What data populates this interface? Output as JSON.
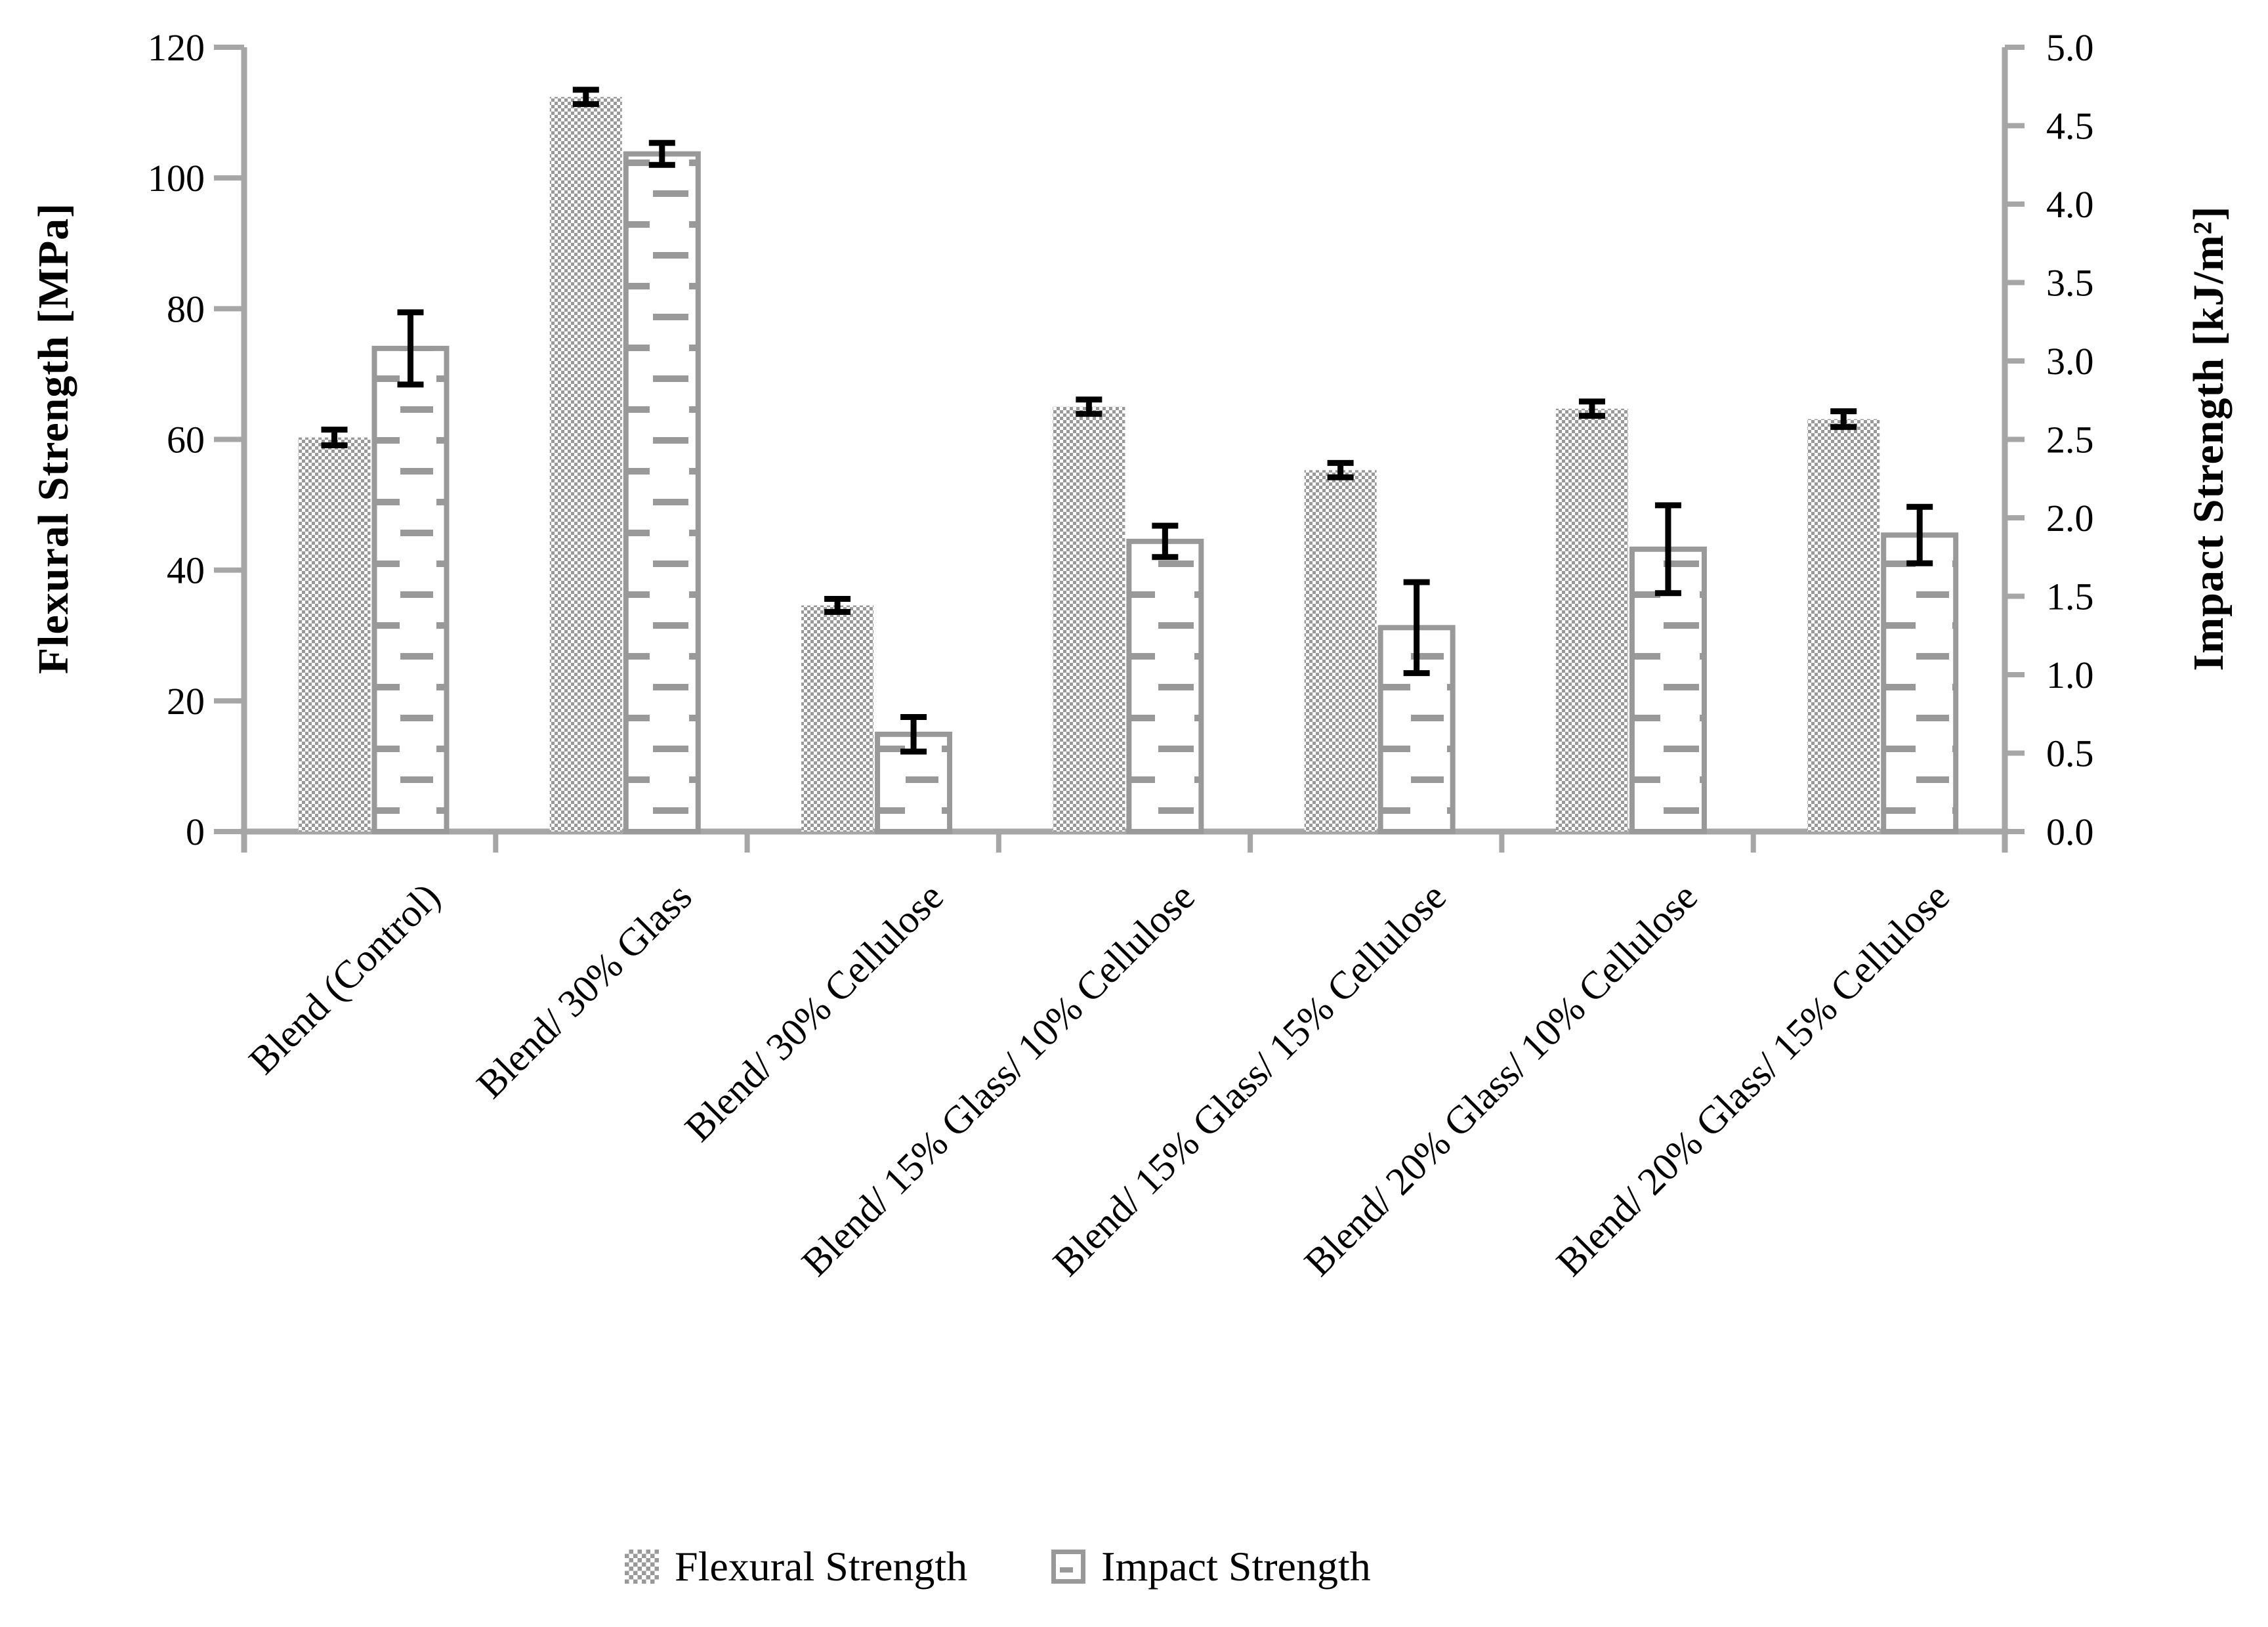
{
  "figure": {
    "left_axis": {
      "title": "Flexural Strength [MPa]",
      "min": 0,
      "max": 120,
      "step": 20,
      "tick_labels": [
        "0",
        "20",
        "40",
        "60",
        "80",
        "100",
        "120"
      ]
    },
    "right_axis": {
      "title": "Impact Strength [kJ/m²]",
      "min": 0,
      "max": 5,
      "step": 0.5,
      "tick_labels": [
        "0.0",
        "0.5",
        "1.0",
        "1.5",
        "2.0",
        "2.5",
        "3.0",
        "3.5",
        "4.0",
        "4.5",
        "5.0"
      ]
    },
    "legend": {
      "flexural_label": "Flexural Strength",
      "impact_label": "Impact Strength"
    },
    "colors": {
      "pattern_gray": "#999999",
      "axis_gray": "#A6A6A6",
      "error_bar": "#000000",
      "background": "#ffffff"
    }
  },
  "chart_data": {
    "type": "bar",
    "title": "",
    "categories": [
      "Blend (Control)",
      "Blend/ 30% Glass",
      "Blend/ 30% Cellulose",
      "Blend/ 15% Glass/ 10% Cellulose",
      "Blend/ 15% Glass/ 15% Cellulose",
      "Blend/ 20% Glass/ 10% Cellulose",
      "Blend/ 20% Glass/ 15% Cellulose"
    ],
    "series": [
      {
        "name": "Flexural Strength",
        "axis": "left",
        "unit": "MPa",
        "values": [
          60.3,
          112.4,
          34.6,
          65.0,
          55.3,
          64.7,
          63.1
        ],
        "errors": [
          1.2,
          1.1,
          1.0,
          1.1,
          1.1,
          1.1,
          1.2
        ],
        "pattern": "checker"
      },
      {
        "name": "Impact Strength",
        "axis": "right",
        "unit": "kJ/m²",
        "values": [
          3.08,
          4.32,
          0.62,
          1.85,
          1.3,
          1.8,
          1.89
        ],
        "errors": [
          0.23,
          0.07,
          0.11,
          0.1,
          0.29,
          0.28,
          0.18
        ],
        "pattern": "dash"
      }
    ],
    "ylim_left": [
      0,
      120
    ],
    "ylim_right": [
      0,
      5
    ],
    "grid": false,
    "legend_position": "bottom",
    "error_bars": true
  }
}
